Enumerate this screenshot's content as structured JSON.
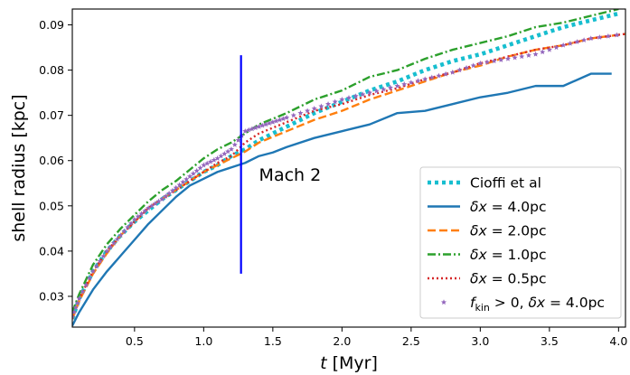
{
  "chart_data": {
    "type": "line",
    "xlabel": "t [Myr]",
    "ylabel": "shell radius [kpc]",
    "xlim": [
      0.05,
      4.05
    ],
    "ylim": [
      0.0232,
      0.0935
    ],
    "xticks": [
      0.5,
      1.0,
      1.5,
      2.0,
      2.5,
      3.0,
      3.5,
      4.0
    ],
    "xtick_labels": [
      "0.5",
      "1.0",
      "1.5",
      "2.0",
      "2.5",
      "3.0",
      "3.5",
      "4.0"
    ],
    "yticks": [
      0.03,
      0.04,
      0.05,
      0.06,
      0.07,
      0.08,
      0.09
    ],
    "ytick_labels": [
      "0.03",
      "0.04",
      "0.05",
      "0.06",
      "0.07",
      "0.08",
      "0.09"
    ],
    "grid": false,
    "legend_position": "lower-right",
    "annotation": {
      "text": "Mach 2",
      "x": 1.4,
      "y": 0.057
    },
    "vline": {
      "x": 1.27,
      "ymin": 0.035,
      "ymax": 0.0833,
      "color": "#0000ff"
    },
    "series": [
      {
        "name": "Cioffi et al",
        "legend_label": "Cioffi et al",
        "style": "dotted-thick",
        "color": "#17becf",
        "x": [
          0.05,
          0.1,
          0.2,
          0.3,
          0.4,
          0.5,
          0.6,
          0.7,
          0.8,
          0.9,
          1.0,
          1.1,
          1.2,
          1.3,
          1.4,
          1.6,
          1.8,
          2.0,
          2.2,
          2.4,
          2.6,
          2.8,
          3.0,
          3.2,
          3.4,
          3.6,
          3.8,
          4.0
        ],
        "y": [
          0.025,
          0.0295,
          0.0355,
          0.04,
          0.0435,
          0.0465,
          0.049,
          0.0515,
          0.0535,
          0.0555,
          0.0575,
          0.059,
          0.061,
          0.0625,
          0.0645,
          0.0675,
          0.0705,
          0.073,
          0.0755,
          0.0775,
          0.08,
          0.082,
          0.0835,
          0.0855,
          0.0875,
          0.0895,
          0.091,
          0.0925
        ]
      },
      {
        "name": "δx = 4.0pc",
        "legend_label": "δx = 4.0pc",
        "style": "solid",
        "color": "#1f77b4",
        "x": [
          0.05,
          0.1,
          0.2,
          0.3,
          0.4,
          0.5,
          0.6,
          0.7,
          0.8,
          0.9,
          1.0,
          1.1,
          1.2,
          1.3,
          1.4,
          1.5,
          1.6,
          1.8,
          2.0,
          2.2,
          2.4,
          2.6,
          2.8,
          3.0,
          3.2,
          3.4,
          3.6,
          3.8,
          3.95
        ],
        "y": [
          0.0235,
          0.0265,
          0.0315,
          0.0355,
          0.039,
          0.0425,
          0.046,
          0.049,
          0.052,
          0.0545,
          0.056,
          0.0575,
          0.0585,
          0.0595,
          0.061,
          0.0618,
          0.063,
          0.065,
          0.0665,
          0.068,
          0.0705,
          0.071,
          0.0725,
          0.074,
          0.075,
          0.0765,
          0.0765,
          0.0792,
          0.0792
        ]
      },
      {
        "name": "δx = 2.0pc",
        "legend_label": "δx = 2.0pc",
        "style": "dashed",
        "color": "#ff7f0e",
        "x": [
          0.05,
          0.1,
          0.2,
          0.3,
          0.4,
          0.5,
          0.6,
          0.7,
          0.8,
          0.9,
          1.0,
          1.1,
          1.2,
          1.3,
          1.4,
          1.6,
          1.8,
          2.0,
          2.2,
          2.4,
          2.6,
          2.8,
          3.0,
          3.2,
          3.4,
          3.6,
          3.8,
          4.05
        ],
        "y": [
          0.025,
          0.029,
          0.035,
          0.0395,
          0.0435,
          0.0465,
          0.0495,
          0.0515,
          0.0535,
          0.0555,
          0.0575,
          0.059,
          0.0605,
          0.062,
          0.064,
          0.0665,
          0.069,
          0.071,
          0.0735,
          0.0755,
          0.0775,
          0.0795,
          0.081,
          0.083,
          0.0845,
          0.0855,
          0.087,
          0.088
        ]
      },
      {
        "name": "δx = 1.0pc",
        "legend_label": "δx = 1.0pc",
        "style": "dashdot",
        "color": "#2ca02c",
        "x": [
          0.05,
          0.1,
          0.2,
          0.3,
          0.4,
          0.5,
          0.6,
          0.7,
          0.8,
          0.9,
          1.0,
          1.1,
          1.2,
          1.3,
          1.4,
          1.6,
          1.8,
          2.0,
          2.2,
          2.4,
          2.6,
          2.8,
          3.0,
          3.2,
          3.4,
          3.6,
          3.8,
          4.0
        ],
        "y": [
          0.0265,
          0.0305,
          0.037,
          0.0415,
          0.045,
          0.048,
          0.051,
          0.0535,
          0.0555,
          0.058,
          0.0605,
          0.0625,
          0.064,
          0.066,
          0.068,
          0.0705,
          0.0735,
          0.0755,
          0.0785,
          0.08,
          0.0825,
          0.0845,
          0.086,
          0.0875,
          0.0895,
          0.0905,
          0.092,
          0.0935
        ]
      },
      {
        "name": "δx = 0.5pc",
        "legend_label": "δx = 0.5pc",
        "style": "dotted",
        "color": "#d62728",
        "x": [
          0.05,
          0.1,
          0.2,
          0.3,
          0.4,
          0.5,
          0.6,
          0.7,
          0.8,
          0.9,
          1.0,
          1.1,
          1.2,
          1.3,
          1.4,
          1.6,
          1.8,
          2.0,
          2.2,
          2.4,
          2.6,
          2.8,
          3.0,
          3.2,
          3.4,
          3.6,
          3.8,
          4.05
        ],
        "y": [
          0.0255,
          0.0295,
          0.0355,
          0.04,
          0.0435,
          0.0465,
          0.0495,
          0.0515,
          0.0535,
          0.0555,
          0.0575,
          0.0595,
          0.061,
          0.064,
          0.066,
          0.0685,
          0.071,
          0.0725,
          0.0745,
          0.076,
          0.078,
          0.0795,
          0.0815,
          0.083,
          0.0845,
          0.0855,
          0.087,
          0.088
        ]
      },
      {
        "name": "f_kin > 0, δx = 4.0pc",
        "legend_label": "f_kin > 0, δx = 4.0pc",
        "style": "markers",
        "color": "#9467bd",
        "x": [
          0.05,
          0.1,
          0.2,
          0.3,
          0.4,
          0.5,
          0.6,
          0.7,
          0.8,
          0.9,
          1.0,
          1.1,
          1.2,
          1.3,
          1.4,
          1.5,
          1.6,
          1.8,
          2.0,
          2.2,
          2.4,
          2.6,
          2.8,
          3.0,
          3.2,
          3.4,
          3.6,
          3.8,
          4.05
        ],
        "y": [
          0.0255,
          0.0295,
          0.0355,
          0.04,
          0.0435,
          0.047,
          0.0495,
          0.0515,
          0.054,
          0.0565,
          0.059,
          0.0605,
          0.0625,
          0.0665,
          0.0675,
          0.0685,
          0.0695,
          0.0715,
          0.0735,
          0.075,
          0.0765,
          0.078,
          0.0795,
          0.0815,
          0.0825,
          0.0835,
          0.0855,
          0.087,
          0.088
        ]
      }
    ]
  }
}
